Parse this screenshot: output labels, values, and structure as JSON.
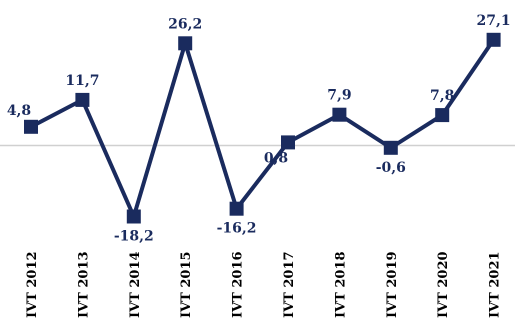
{
  "chart_data": {
    "type": "line",
    "categories": [
      "IVT 2012",
      "IVT 2013",
      "IVT 2014",
      "IVT 2015",
      "IVT 2016",
      "IVT 2017",
      "IVT 2018",
      "IVT 2019",
      "IVT 2020",
      "IVT 2021"
    ],
    "series": [
      {
        "values": [
          4.8,
          11.7,
          -18.2,
          26.2,
          -16.2,
          0.8,
          7.9,
          -0.6,
          7.8,
          27.1
        ],
        "labels": [
          "4,8",
          "11,7",
          "-18,2",
          "26,2",
          "-16,2",
          "0,8",
          "7,9",
          "-0,6",
          "7,8",
          "27,1"
        ]
      }
    ],
    "ylim": [
      -20,
      30
    ],
    "grid": false,
    "zero_line": true,
    "colors": {
      "series": "#1a2b5e",
      "zero_line": "#d0d0d0"
    }
  }
}
